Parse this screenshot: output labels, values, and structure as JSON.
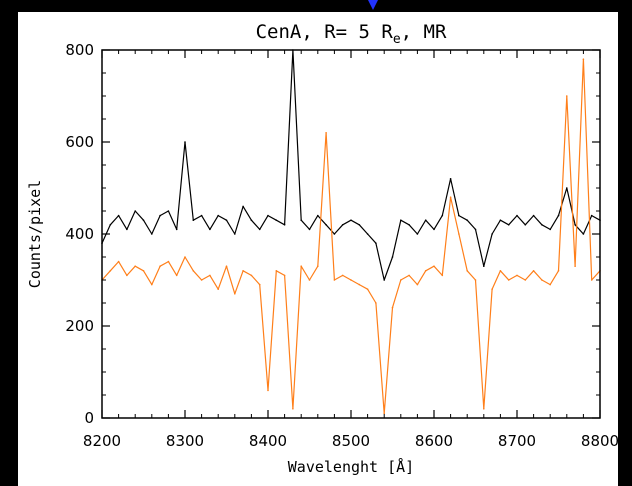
{
  "chart_data": {
    "type": "line",
    "title_parts": {
      "main": "CenA, R= 5 R",
      "sub": "e",
      "tail": ", MR"
    },
    "xlabel": "Wavelenght [Å]",
    "ylabel": "Counts/pixel",
    "xlim": [
      8200,
      8800
    ],
    "ylim": [
      0,
      800
    ],
    "x_ticks": [
      8200,
      8300,
      8400,
      8500,
      8600,
      8700,
      8800
    ],
    "y_ticks": [
      0,
      200,
      400,
      600,
      800
    ],
    "grid": false,
    "legend": "none",
    "series": [
      {
        "color": "#000000",
        "points": [
          [
            8200,
            380
          ],
          [
            8210,
            420
          ],
          [
            8220,
            440
          ],
          [
            8230,
            410
          ],
          [
            8240,
            450
          ],
          [
            8250,
            430
          ],
          [
            8260,
            400
          ],
          [
            8270,
            440
          ],
          [
            8280,
            450
          ],
          [
            8290,
            410
          ],
          [
            8300,
            600
          ],
          [
            8310,
            430
          ],
          [
            8320,
            440
          ],
          [
            8330,
            410
          ],
          [
            8340,
            440
          ],
          [
            8350,
            430
          ],
          [
            8360,
            400
          ],
          [
            8370,
            460
          ],
          [
            8380,
            430
          ],
          [
            8390,
            410
          ],
          [
            8400,
            440
          ],
          [
            8410,
            430
          ],
          [
            8420,
            420
          ],
          [
            8430,
            800
          ],
          [
            8440,
            430
          ],
          [
            8450,
            410
          ],
          [
            8460,
            440
          ],
          [
            8470,
            420
          ],
          [
            8480,
            400
          ],
          [
            8490,
            420
          ],
          [
            8500,
            430
          ],
          [
            8510,
            420
          ],
          [
            8520,
            400
          ],
          [
            8530,
            380
          ],
          [
            8540,
            300
          ],
          [
            8550,
            350
          ],
          [
            8560,
            430
          ],
          [
            8570,
            420
          ],
          [
            8580,
            400
          ],
          [
            8590,
            430
          ],
          [
            8600,
            410
          ],
          [
            8610,
            440
          ],
          [
            8620,
            520
          ],
          [
            8630,
            440
          ],
          [
            8640,
            430
          ],
          [
            8650,
            410
          ],
          [
            8660,
            330
          ],
          [
            8670,
            400
          ],
          [
            8680,
            430
          ],
          [
            8690,
            420
          ],
          [
            8700,
            440
          ],
          [
            8710,
            420
          ],
          [
            8720,
            440
          ],
          [
            8730,
            420
          ],
          [
            8740,
            410
          ],
          [
            8750,
            440
          ],
          [
            8760,
            500
          ],
          [
            8770,
            420
          ],
          [
            8780,
            400
          ],
          [
            8790,
            440
          ],
          [
            8800,
            430
          ]
        ]
      },
      {
        "color": "#ff7f1a",
        "points": [
          [
            8200,
            300
          ],
          [
            8210,
            320
          ],
          [
            8220,
            340
          ],
          [
            8230,
            310
          ],
          [
            8240,
            330
          ],
          [
            8250,
            320
          ],
          [
            8260,
            290
          ],
          [
            8270,
            330
          ],
          [
            8280,
            340
          ],
          [
            8290,
            310
          ],
          [
            8300,
            350
          ],
          [
            8310,
            320
          ],
          [
            8320,
            300
          ],
          [
            8330,
            310
          ],
          [
            8340,
            280
          ],
          [
            8350,
            330
          ],
          [
            8360,
            270
          ],
          [
            8370,
            320
          ],
          [
            8380,
            310
          ],
          [
            8390,
            290
          ],
          [
            8400,
            60
          ],
          [
            8410,
            320
          ],
          [
            8420,
            310
          ],
          [
            8430,
            20
          ],
          [
            8440,
            330
          ],
          [
            8450,
            300
          ],
          [
            8460,
            330
          ],
          [
            8470,
            620
          ],
          [
            8480,
            300
          ],
          [
            8490,
            310
          ],
          [
            8500,
            300
          ],
          [
            8510,
            290
          ],
          [
            8520,
            280
          ],
          [
            8530,
            250
          ],
          [
            8540,
            10
          ],
          [
            8550,
            240
          ],
          [
            8560,
            300
          ],
          [
            8570,
            310
          ],
          [
            8580,
            290
          ],
          [
            8590,
            320
          ],
          [
            8600,
            330
          ],
          [
            8610,
            310
          ],
          [
            8620,
            480
          ],
          [
            8630,
            400
          ],
          [
            8640,
            320
          ],
          [
            8650,
            300
          ],
          [
            8660,
            20
          ],
          [
            8670,
            280
          ],
          [
            8680,
            320
          ],
          [
            8690,
            300
          ],
          [
            8700,
            310
          ],
          [
            8710,
            300
          ],
          [
            8720,
            320
          ],
          [
            8730,
            300
          ],
          [
            8740,
            290
          ],
          [
            8750,
            320
          ],
          [
            8760,
            700
          ],
          [
            8770,
            330
          ],
          [
            8780,
            780
          ],
          [
            8790,
            300
          ],
          [
            8800,
            320
          ]
        ]
      }
    ]
  }
}
